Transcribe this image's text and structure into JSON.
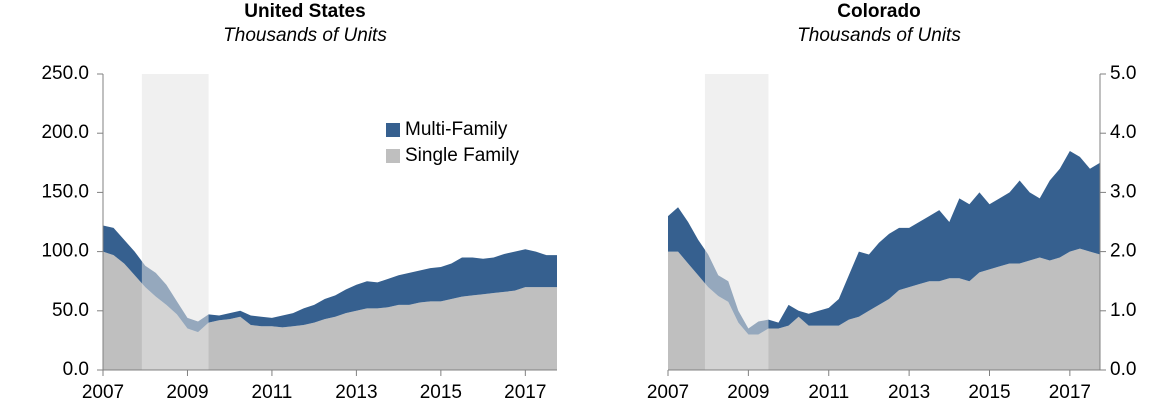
{
  "chart_data": [
    {
      "type": "area",
      "title": "United States",
      "subtitle": "Thousands of Units",
      "x": [
        2007,
        2007.25,
        2007.5,
        2007.75,
        2008,
        2008.25,
        2008.5,
        2008.75,
        2009,
        2009.25,
        2009.5,
        2009.75,
        2010,
        2010.25,
        2010.5,
        2010.75,
        2011,
        2011.25,
        2011.5,
        2011.75,
        2012,
        2012.25,
        2012.5,
        2012.75,
        2013,
        2013.25,
        2013.5,
        2013.75,
        2014,
        2014.25,
        2014.5,
        2014.75,
        2015,
        2015.25,
        2015.5,
        2015.75,
        2016,
        2016.25,
        2016.5,
        2016.75,
        2017,
        2017.25,
        2017.5,
        2017.75
      ],
      "series": [
        {
          "name": "Single Family",
          "color": "#bfbfbf",
          "values": [
            100,
            97,
            90,
            80,
            70,
            62,
            55,
            47,
            35,
            32,
            40,
            42,
            43,
            45,
            38,
            37,
            37,
            36,
            37,
            38,
            40,
            43,
            45,
            48,
            50,
            52,
            52,
            53,
            55,
            55,
            57,
            58,
            58,
            60,
            62,
            63,
            64,
            65,
            66,
            67,
            70,
            70,
            70,
            70
          ]
        },
        {
          "name": "Multi-Family",
          "color": "#36608f",
          "values": [
            22,
            23,
            20,
            20,
            18,
            20,
            17,
            11,
            9,
            9,
            7,
            4,
            5,
            5,
            8,
            8,
            7,
            10,
            11,
            14,
            15,
            17,
            18,
            20,
            22,
            23,
            22,
            24,
            25,
            27,
            27,
            28,
            29,
            30,
            33,
            32,
            30,
            30,
            32,
            33,
            32,
            30,
            27,
            27
          ]
        }
      ],
      "shaded_range": [
        2007.92,
        2009.5
      ],
      "xlim": [
        2007,
        2017.75
      ],
      "xticks": [
        2007,
        2009,
        2011,
        2013,
        2015,
        2017
      ],
      "ylim": [
        0,
        250
      ],
      "yticks": [
        {
          "value": 0,
          "label": "0.0"
        },
        {
          "value": 50,
          "label": "50.0"
        },
        {
          "value": 100,
          "label": "100.0"
        },
        {
          "value": 150,
          "label": "150.0"
        },
        {
          "value": 200,
          "label": "200.0"
        },
        {
          "value": 250,
          "label": "250.0"
        }
      ],
      "y_axis": "left",
      "legend": "upper right"
    },
    {
      "type": "area",
      "title": "Colorado",
      "subtitle": "Thousands of Units",
      "x": [
        2007,
        2007.25,
        2007.5,
        2007.75,
        2008,
        2008.25,
        2008.5,
        2008.75,
        2009,
        2009.25,
        2009.5,
        2009.75,
        2010,
        2010.25,
        2010.5,
        2010.75,
        2011,
        2011.25,
        2011.5,
        2011.75,
        2012,
        2012.25,
        2012.5,
        2012.75,
        2013,
        2013.25,
        2013.5,
        2013.75,
        2014,
        2014.25,
        2014.5,
        2014.75,
        2015,
        2015.25,
        2015.5,
        2015.75,
        2016,
        2016.25,
        2016.5,
        2016.75,
        2017,
        2017.25,
        2017.5,
        2017.75
      ],
      "series": [
        {
          "color": "#bfbfbf",
          "values": [
            2.0,
            2.0,
            1.8,
            1.6,
            1.4,
            1.25,
            1.15,
            0.8,
            0.6,
            0.6,
            0.7,
            0.7,
            0.75,
            0.9,
            0.75,
            0.75,
            0.75,
            0.75,
            0.85,
            0.9,
            1.0,
            1.1,
            1.2,
            1.35,
            1.4,
            1.45,
            1.5,
            1.5,
            1.55,
            1.55,
            1.5,
            1.65,
            1.7,
            1.75,
            1.8,
            1.8,
            1.85,
            1.9,
            1.85,
            1.9,
            2.0,
            2.05,
            2.0,
            1.95
          ]
        },
        {
          "color": "#36608f",
          "values": [
            0.6,
            0.75,
            0.7,
            0.6,
            0.55,
            0.35,
            0.35,
            0.2,
            0.1,
            0.22,
            0.15,
            0.1,
            0.35,
            0.1,
            0.2,
            0.25,
            0.3,
            0.45,
            0.75,
            1.1,
            0.95,
            1.05,
            1.1,
            1.05,
            1.0,
            1.05,
            1.1,
            1.2,
            0.95,
            1.35,
            1.3,
            1.35,
            1.1,
            1.15,
            1.2,
            1.4,
            1.15,
            1.0,
            1.35,
            1.5,
            1.7,
            1.55,
            1.4,
            1.55
          ]
        }
      ],
      "shaded_range": [
        2007.92,
        2009.5
      ],
      "xlim": [
        2007,
        2017.75
      ],
      "xticks": [
        2007,
        2009,
        2011,
        2013,
        2015,
        2017
      ],
      "ylim": [
        0,
        5
      ],
      "yticks": [
        {
          "value": 0,
          "label": "0.0"
        },
        {
          "value": 1,
          "label": "1.0"
        },
        {
          "value": 2,
          "label": "2.0"
        },
        {
          "value": 3,
          "label": "3.0"
        },
        {
          "value": 4,
          "label": "4.0"
        },
        {
          "value": 5,
          "label": "5.0"
        }
      ],
      "y_axis": "right"
    }
  ]
}
